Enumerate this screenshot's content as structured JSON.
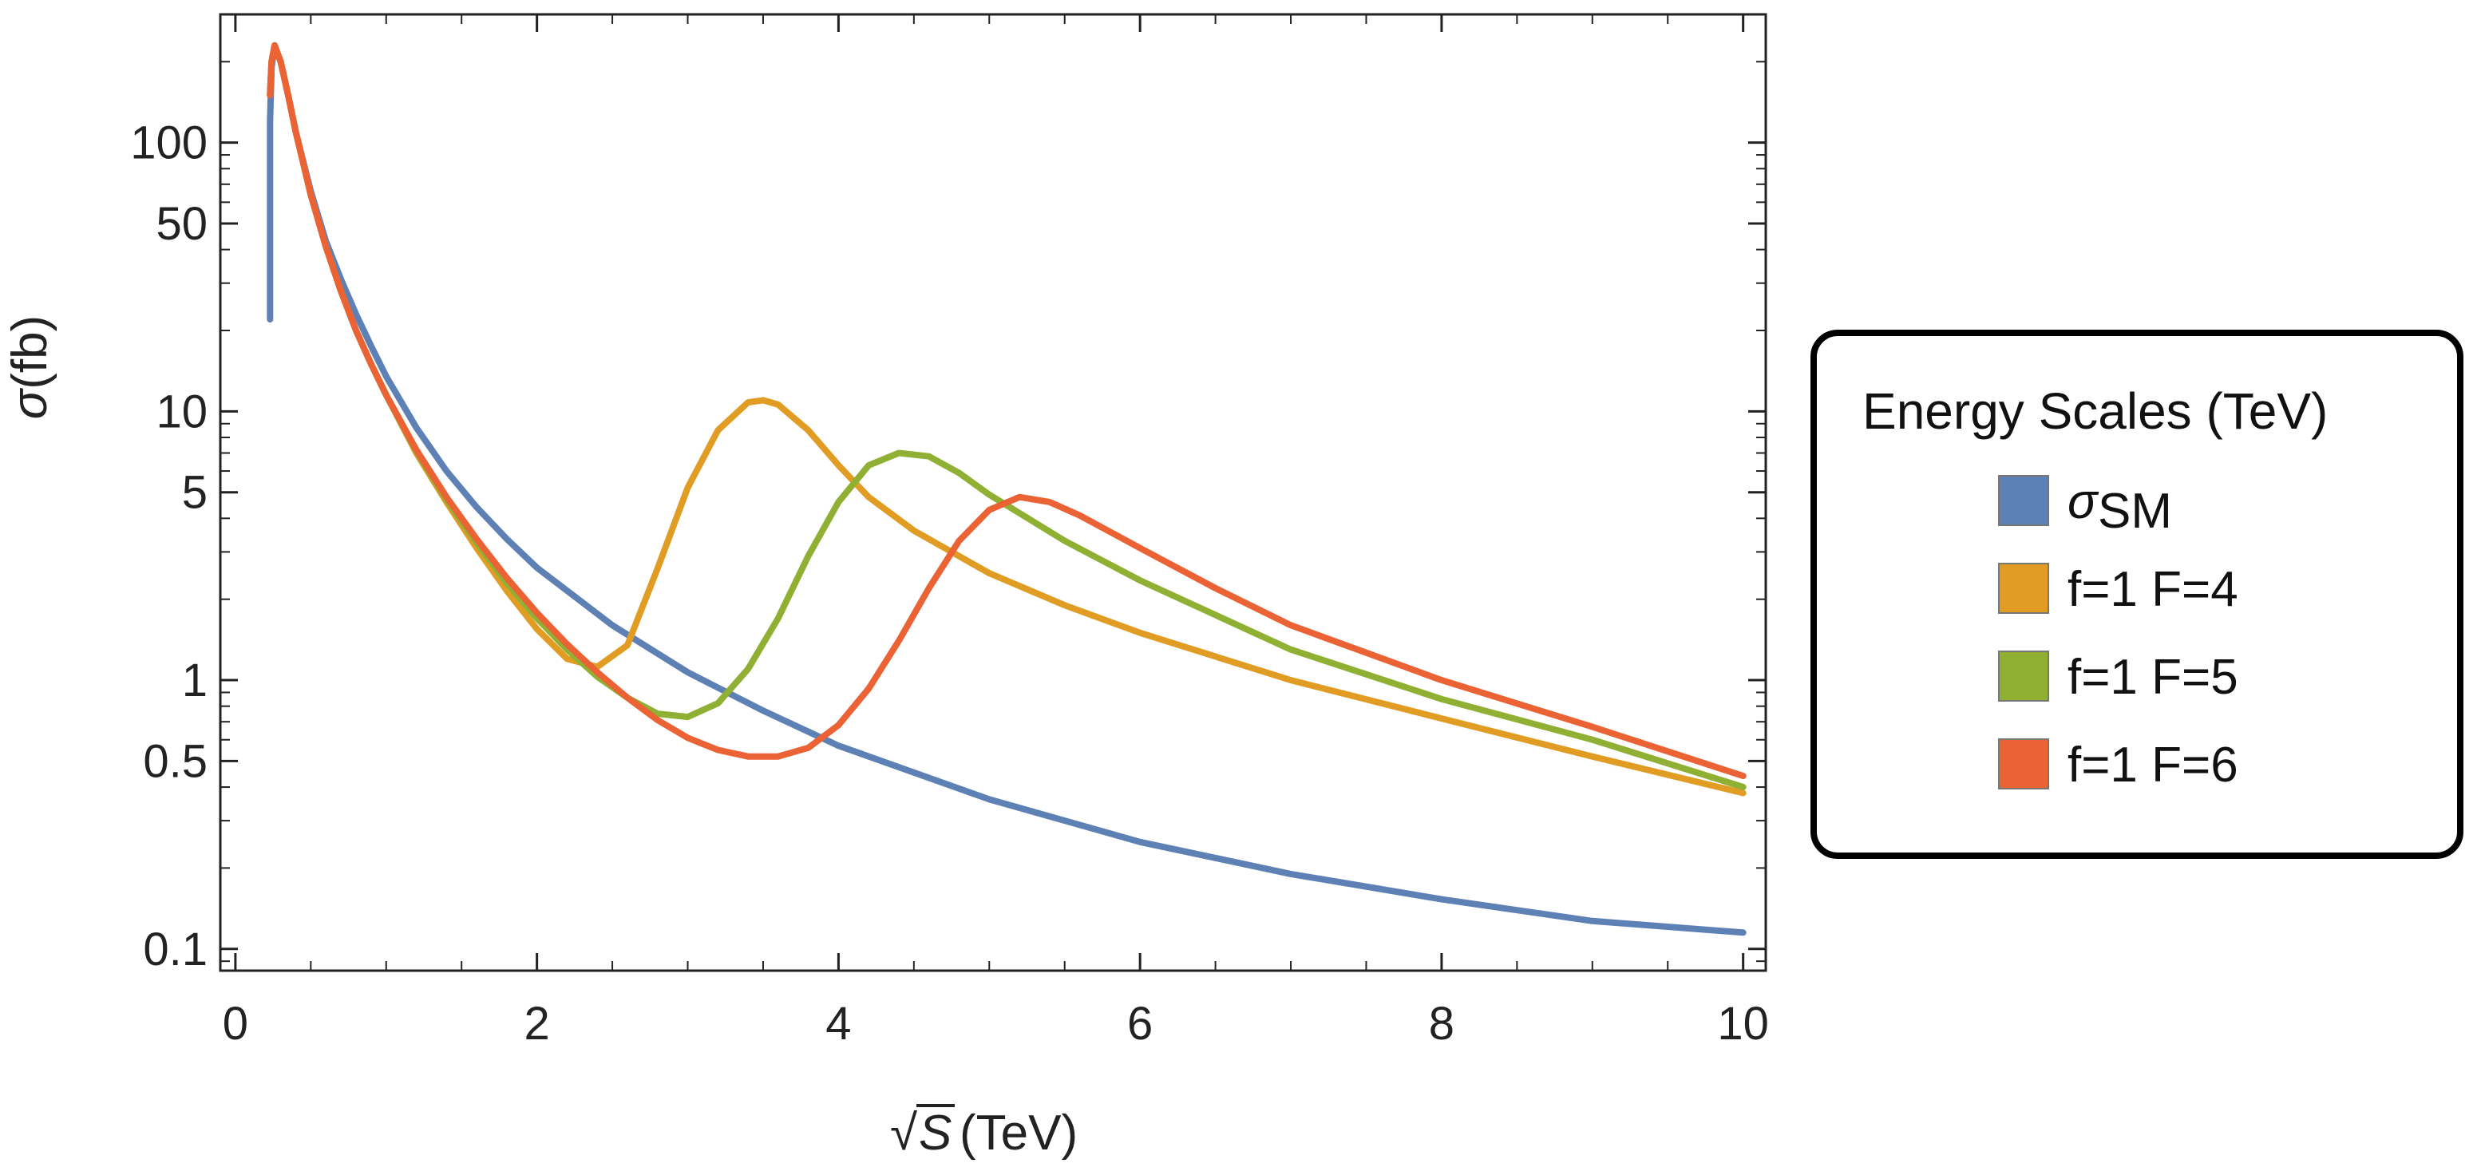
{
  "chart_data": {
    "type": "line",
    "title": "",
    "xlabel_prefix": "√",
    "xlabel_var": "S",
    "xlabel_unit": "(TeV)",
    "ylabel_var": "σ",
    "ylabel_unit": "(fb)",
    "xlim": [
      -0.1,
      10.15
    ],
    "ylim": [
      0.083,
      300
    ],
    "yscale": "log",
    "x_ticks": [
      0,
      2,
      4,
      6,
      8,
      10
    ],
    "x_tick_labels": [
      "0",
      "2",
      "4",
      "6",
      "8",
      "10"
    ],
    "y_ticks": [
      0.1,
      0.5,
      1,
      5,
      10,
      50,
      100
    ],
    "y_tick_labels": [
      "0.1",
      "0.5",
      "1",
      "5",
      "10",
      "50",
      "100"
    ],
    "grid": false,
    "legend": {
      "title": "Energy Scales (TeV)",
      "placement": "right, outside plot area"
    },
    "series": [
      {
        "name": "σ",
        "name_subscript": "SM",
        "color": "#5E81B5",
        "x": [
          0.23,
          0.23,
          0.23,
          0.24,
          0.26,
          0.3,
          0.35,
          0.4,
          0.5,
          0.6,
          0.7,
          0.8,
          0.9,
          1.0,
          1.2,
          1.4,
          1.6,
          1.8,
          2.0,
          2.5,
          3.0,
          3.5,
          4.0,
          5.0,
          6.0,
          7.0,
          8.0,
          9.0,
          10.0
        ],
        "y": [
          22,
          60,
          120,
          190,
          230,
          200,
          150,
          110,
          66,
          43,
          31,
          23,
          17.5,
          13.5,
          8.7,
          6.0,
          4.4,
          3.35,
          2.62,
          1.6,
          1.07,
          0.77,
          0.57,
          0.36,
          0.25,
          0.19,
          0.153,
          0.127,
          0.115
        ]
      },
      {
        "name": "f=1 F=4",
        "color": "#E19C24",
        "x": [
          0.23,
          0.24,
          0.26,
          0.3,
          0.35,
          0.4,
          0.5,
          0.6,
          0.7,
          0.8,
          0.9,
          1.0,
          1.2,
          1.4,
          1.6,
          1.8,
          2.0,
          2.2,
          2.4,
          2.6,
          2.8,
          3.0,
          3.2,
          3.4,
          3.5,
          3.6,
          3.8,
          4.0,
          4.2,
          4.5,
          5.0,
          5.5,
          6.0,
          7.0,
          8.0,
          9.0,
          10.0
        ],
        "y": [
          150,
          200,
          230,
          200,
          150,
          110,
          64,
          41,
          28,
          20,
          15,
          11.5,
          7.0,
          4.6,
          3.1,
          2.15,
          1.55,
          1.2,
          1.12,
          1.35,
          2.6,
          5.2,
          8.5,
          10.8,
          11.0,
          10.6,
          8.5,
          6.3,
          4.8,
          3.6,
          2.5,
          1.9,
          1.5,
          1.0,
          0.72,
          0.52,
          0.38
        ]
      },
      {
        "name": "f=1 F=5",
        "color": "#8FB032",
        "x": [
          0.23,
          0.24,
          0.26,
          0.3,
          0.35,
          0.4,
          0.5,
          0.6,
          0.7,
          0.8,
          0.9,
          1.0,
          1.2,
          1.4,
          1.6,
          1.8,
          2.0,
          2.2,
          2.4,
          2.6,
          2.8,
          3.0,
          3.2,
          3.4,
          3.6,
          3.8,
          4.0,
          4.2,
          4.4,
          4.6,
          4.8,
          5.0,
          5.5,
          6.0,
          7.0,
          8.0,
          9.0,
          10.0
        ],
        "y": [
          150,
          200,
          230,
          200,
          150,
          110,
          64,
          41,
          28,
          20,
          15,
          11.5,
          7.1,
          4.7,
          3.25,
          2.3,
          1.7,
          1.3,
          1.03,
          0.86,
          0.75,
          0.73,
          0.82,
          1.1,
          1.7,
          2.9,
          4.6,
          6.3,
          7.0,
          6.8,
          5.9,
          4.9,
          3.3,
          2.35,
          1.3,
          0.85,
          0.6,
          0.4
        ]
      },
      {
        "name": "f=1 F=6",
        "color": "#EB6235",
        "x": [
          0.23,
          0.24,
          0.26,
          0.3,
          0.35,
          0.4,
          0.5,
          0.6,
          0.7,
          0.8,
          0.9,
          1.0,
          1.2,
          1.4,
          1.6,
          1.8,
          2.0,
          2.2,
          2.4,
          2.6,
          2.8,
          3.0,
          3.2,
          3.4,
          3.6,
          3.8,
          4.0,
          4.2,
          4.4,
          4.6,
          4.8,
          5.0,
          5.2,
          5.4,
          5.6,
          6.0,
          6.5,
          7.0,
          8.0,
          9.0,
          10.0
        ],
        "y": [
          150,
          200,
          230,
          200,
          150,
          110,
          64,
          41,
          28,
          20,
          15,
          11.5,
          7.2,
          4.8,
          3.35,
          2.4,
          1.78,
          1.36,
          1.07,
          0.86,
          0.71,
          0.61,
          0.55,
          0.52,
          0.52,
          0.56,
          0.68,
          0.93,
          1.4,
          2.2,
          3.3,
          4.3,
          4.8,
          4.6,
          4.1,
          3.1,
          2.2,
          1.6,
          1.0,
          0.67,
          0.44
        ]
      }
    ]
  }
}
